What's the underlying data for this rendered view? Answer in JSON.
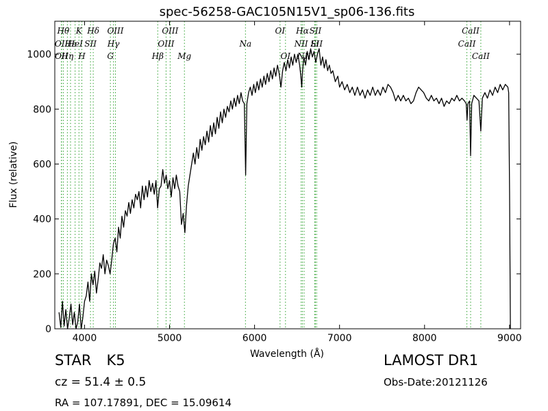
{
  "chart_data": {
    "type": "line",
    "title": "spec-56258-GAC105N15V1_sp06-136.fits",
    "xlabel": "Wavelength (Å)",
    "ylabel": "Flux (relative)",
    "xlim": [
      3650,
      9130
    ],
    "ylim": [
      0,
      1120
    ],
    "x_ticks": [
      4000,
      5000,
      6000,
      7000,
      8000,
      9000
    ],
    "y_ticks": [
      0,
      200,
      400,
      600,
      800,
      1000
    ],
    "grid": false,
    "line_color": "#000000",
    "marker_color": "#2ca02c",
    "series": [
      {
        "points": [
          [
            3700,
            60
          ],
          [
            3720,
            5
          ],
          [
            3740,
            100
          ],
          [
            3760,
            10
          ],
          [
            3780,
            70
          ],
          [
            3800,
            0
          ],
          [
            3820,
            40
          ],
          [
            3840,
            90
          ],
          [
            3860,
            15
          ],
          [
            3880,
            60
          ],
          [
            3900,
            0
          ],
          [
            3920,
            25
          ],
          [
            3940,
            90
          ],
          [
            3960,
            0
          ],
          [
            3980,
            40
          ],
          [
            4000,
            100
          ],
          [
            4020,
            120
          ],
          [
            4040,
            170
          ],
          [
            4060,
            100
          ],
          [
            4080,
            200
          ],
          [
            4100,
            160
          ],
          [
            4120,
            210
          ],
          [
            4140,
            130
          ],
          [
            4160,
            180
          ],
          [
            4180,
            240
          ],
          [
            4200,
            220
          ],
          [
            4220,
            270
          ],
          [
            4240,
            200
          ],
          [
            4260,
            250
          ],
          [
            4280,
            230
          ],
          [
            4300,
            200
          ],
          [
            4320,
            250
          ],
          [
            4340,
            310
          ],
          [
            4360,
            330
          ],
          [
            4380,
            280
          ],
          [
            4400,
            370
          ],
          [
            4420,
            330
          ],
          [
            4440,
            410
          ],
          [
            4460,
            370
          ],
          [
            4480,
            430
          ],
          [
            4500,
            410
          ],
          [
            4520,
            460
          ],
          [
            4540,
            420
          ],
          [
            4560,
            470
          ],
          [
            4580,
            440
          ],
          [
            4600,
            490
          ],
          [
            4620,
            470
          ],
          [
            4640,
            500
          ],
          [
            4660,
            440
          ],
          [
            4680,
            520
          ],
          [
            4700,
            470
          ],
          [
            4720,
            520
          ],
          [
            4740,
            480
          ],
          [
            4760,
            540
          ],
          [
            4780,
            500
          ],
          [
            4800,
            530
          ],
          [
            4820,
            490
          ],
          [
            4840,
            540
          ],
          [
            4860,
            440
          ],
          [
            4880,
            510
          ],
          [
            4900,
            520
          ],
          [
            4920,
            580
          ],
          [
            4940,
            530
          ],
          [
            4960,
            560
          ],
          [
            4980,
            510
          ],
          [
            5000,
            540
          ],
          [
            5020,
            480
          ],
          [
            5040,
            550
          ],
          [
            5060,
            510
          ],
          [
            5080,
            560
          ],
          [
            5100,
            520
          ],
          [
            5120,
            500
          ],
          [
            5140,
            380
          ],
          [
            5160,
            420
          ],
          [
            5180,
            350
          ],
          [
            5200,
            450
          ],
          [
            5220,
            520
          ],
          [
            5240,
            560
          ],
          [
            5260,
            600
          ],
          [
            5280,
            640
          ],
          [
            5300,
            600
          ],
          [
            5320,
            660
          ],
          [
            5340,
            620
          ],
          [
            5360,
            690
          ],
          [
            5380,
            650
          ],
          [
            5400,
            700
          ],
          [
            5420,
            670
          ],
          [
            5440,
            720
          ],
          [
            5460,
            680
          ],
          [
            5480,
            740
          ],
          [
            5500,
            700
          ],
          [
            5520,
            750
          ],
          [
            5540,
            710
          ],
          [
            5560,
            770
          ],
          [
            5580,
            730
          ],
          [
            5600,
            790
          ],
          [
            5620,
            750
          ],
          [
            5640,
            800
          ],
          [
            5660,
            770
          ],
          [
            5680,
            810
          ],
          [
            5700,
            790
          ],
          [
            5720,
            830
          ],
          [
            5740,
            800
          ],
          [
            5760,
            840
          ],
          [
            5780,
            810
          ],
          [
            5800,
            850
          ],
          [
            5820,
            820
          ],
          [
            5840,
            860
          ],
          [
            5860,
            830
          ],
          [
            5880,
            820
          ],
          [
            5895,
            560
          ],
          [
            5910,
            820
          ],
          [
            5930,
            860
          ],
          [
            5950,
            880
          ],
          [
            5970,
            850
          ],
          [
            5990,
            890
          ],
          [
            6010,
            860
          ],
          [
            6030,
            900
          ],
          [
            6050,
            870
          ],
          [
            6070,
            910
          ],
          [
            6090,
            880
          ],
          [
            6110,
            920
          ],
          [
            6130,
            890
          ],
          [
            6150,
            930
          ],
          [
            6170,
            900
          ],
          [
            6190,
            940
          ],
          [
            6210,
            910
          ],
          [
            6230,
            950
          ],
          [
            6250,
            920
          ],
          [
            6270,
            960
          ],
          [
            6290,
            930
          ],
          [
            6310,
            880
          ],
          [
            6330,
            940
          ],
          [
            6350,
            970
          ],
          [
            6370,
            940
          ],
          [
            6390,
            980
          ],
          [
            6410,
            950
          ],
          [
            6430,
            990
          ],
          [
            6450,
            960
          ],
          [
            6470,
            1000
          ],
          [
            6490,
            970
          ],
          [
            6510,
            1000
          ],
          [
            6530,
            960
          ],
          [
            6545,
            920
          ],
          [
            6555,
            880
          ],
          [
            6565,
            940
          ],
          [
            6580,
            990
          ],
          [
            6600,
            960
          ],
          [
            6620,
            1010
          ],
          [
            6640,
            980
          ],
          [
            6660,
            1020
          ],
          [
            6680,
            990
          ],
          [
            6700,
            1010
          ],
          [
            6720,
            970
          ],
          [
            6740,
            1000
          ],
          [
            6760,
            1020
          ],
          [
            6780,
            960
          ],
          [
            6800,
            990
          ],
          [
            6820,
            950
          ],
          [
            6840,
            980
          ],
          [
            6860,
            940
          ],
          [
            6880,
            960
          ],
          [
            6900,
            930
          ],
          [
            6920,
            940
          ],
          [
            6950,
            900
          ],
          [
            6980,
            920
          ],
          [
            7000,
            880
          ],
          [
            7030,
            900
          ],
          [
            7060,
            870
          ],
          [
            7090,
            890
          ],
          [
            7120,
            860
          ],
          [
            7150,
            880
          ],
          [
            7180,
            850
          ],
          [
            7210,
            880
          ],
          [
            7240,
            850
          ],
          [
            7270,
            870
          ],
          [
            7300,
            840
          ],
          [
            7330,
            870
          ],
          [
            7360,
            850
          ],
          [
            7390,
            880
          ],
          [
            7420,
            850
          ],
          [
            7450,
            870
          ],
          [
            7480,
            850
          ],
          [
            7510,
            880
          ],
          [
            7540,
            860
          ],
          [
            7570,
            890
          ],
          [
            7600,
            880
          ],
          [
            7630,
            860
          ],
          [
            7660,
            830
          ],
          [
            7690,
            850
          ],
          [
            7720,
            830
          ],
          [
            7750,
            850
          ],
          [
            7780,
            830
          ],
          [
            7810,
            840
          ],
          [
            7840,
            820
          ],
          [
            7870,
            830
          ],
          [
            7900,
            860
          ],
          [
            7930,
            880
          ],
          [
            7960,
            870
          ],
          [
            7990,
            860
          ],
          [
            8020,
            840
          ],
          [
            8050,
            830
          ],
          [
            8080,
            850
          ],
          [
            8110,
            830
          ],
          [
            8140,
            840
          ],
          [
            8170,
            820
          ],
          [
            8200,
            840
          ],
          [
            8230,
            810
          ],
          [
            8260,
            830
          ],
          [
            8290,
            820
          ],
          [
            8320,
            840
          ],
          [
            8350,
            830
          ],
          [
            8380,
            850
          ],
          [
            8410,
            830
          ],
          [
            8440,
            840
          ],
          [
            8470,
            830
          ],
          [
            8490,
            820
          ],
          [
            8500,
            760
          ],
          [
            8510,
            820
          ],
          [
            8530,
            830
          ],
          [
            8542,
            630
          ],
          [
            8555,
            820
          ],
          [
            8580,
            850
          ],
          [
            8610,
            840
          ],
          [
            8640,
            830
          ],
          [
            8662,
            720
          ],
          [
            8680,
            840
          ],
          [
            8710,
            860
          ],
          [
            8740,
            840
          ],
          [
            8770,
            870
          ],
          [
            8800,
            850
          ],
          [
            8830,
            880
          ],
          [
            8860,
            860
          ],
          [
            8890,
            890
          ],
          [
            8920,
            870
          ],
          [
            8950,
            890
          ],
          [
            8980,
            880
          ],
          [
            8990,
            860
          ],
          [
            9000,
            500
          ],
          [
            9010,
            0
          ]
        ]
      }
    ],
    "line_markers": [
      {
        "wavelength": 3727,
        "label": "OII",
        "row": 2
      },
      {
        "wavelength": 3729,
        "label": "OII",
        "row": 3
      },
      {
        "wavelength": 3750,
        "label": "Hθ",
        "row": 1
      },
      {
        "wavelength": 3798,
        "label": "Hη",
        "row": 3
      },
      {
        "wavelength": 3835,
        "label": "Hε",
        "row": 2
      },
      {
        "wavelength": 3889,
        "label": "HeI",
        "row": 2
      },
      {
        "wavelength": 3934,
        "label": "K",
        "row": 1
      },
      {
        "wavelength": 3968,
        "label": "H",
        "row": 3
      },
      {
        "wavelength": 4070,
        "label": "SII",
        "row": 2
      },
      {
        "wavelength": 4102,
        "label": "Hδ",
        "row": 1
      },
      {
        "wavelength": 4304,
        "label": "G",
        "row": 3
      },
      {
        "wavelength": 4340,
        "label": "Hγ",
        "row": 2
      },
      {
        "wavelength": 4363,
        "label": "OIII",
        "row": 1
      },
      {
        "wavelength": 4861,
        "label": "Hβ",
        "row": 3
      },
      {
        "wavelength": 4959,
        "label": "OIII",
        "row": 2
      },
      {
        "wavelength": 5007,
        "label": "OIII",
        "row": 1
      },
      {
        "wavelength": 5175,
        "label": "Mg",
        "row": 3
      },
      {
        "wavelength": 5893,
        "label": "Na",
        "row": 2
      },
      {
        "wavelength": 6300,
        "label": "OI",
        "row": 1
      },
      {
        "wavelength": 6364,
        "label": "OI",
        "row": 3
      },
      {
        "wavelength": 6548,
        "label": "NII",
        "row": 2
      },
      {
        "wavelength": 6563,
        "label": "Hα",
        "row": 1
      },
      {
        "wavelength": 6583,
        "label": "NII",
        "row": 3
      },
      {
        "wavelength": 6708,
        "label": "Li",
        "row": 2
      },
      {
        "wavelength": 6716,
        "label": "SII",
        "row": 1
      },
      {
        "wavelength": 6731,
        "label": "SII",
        "row": 2
      },
      {
        "wavelength": 8498,
        "label": "CaII",
        "row": 2
      },
      {
        "wavelength": 8542,
        "label": "CaII",
        "row": 1
      },
      {
        "wavelength": 8662,
        "label": "CaII",
        "row": 3
      }
    ]
  },
  "info": {
    "object_class": "STAR",
    "subclass": "K5",
    "cz": "cz = 51.4 ± 0.5",
    "coordinates": "RA = 107.17891, DEC = 15.09614",
    "survey": "LAMOST DR1",
    "obs_date": "Obs-Date:20121126"
  }
}
